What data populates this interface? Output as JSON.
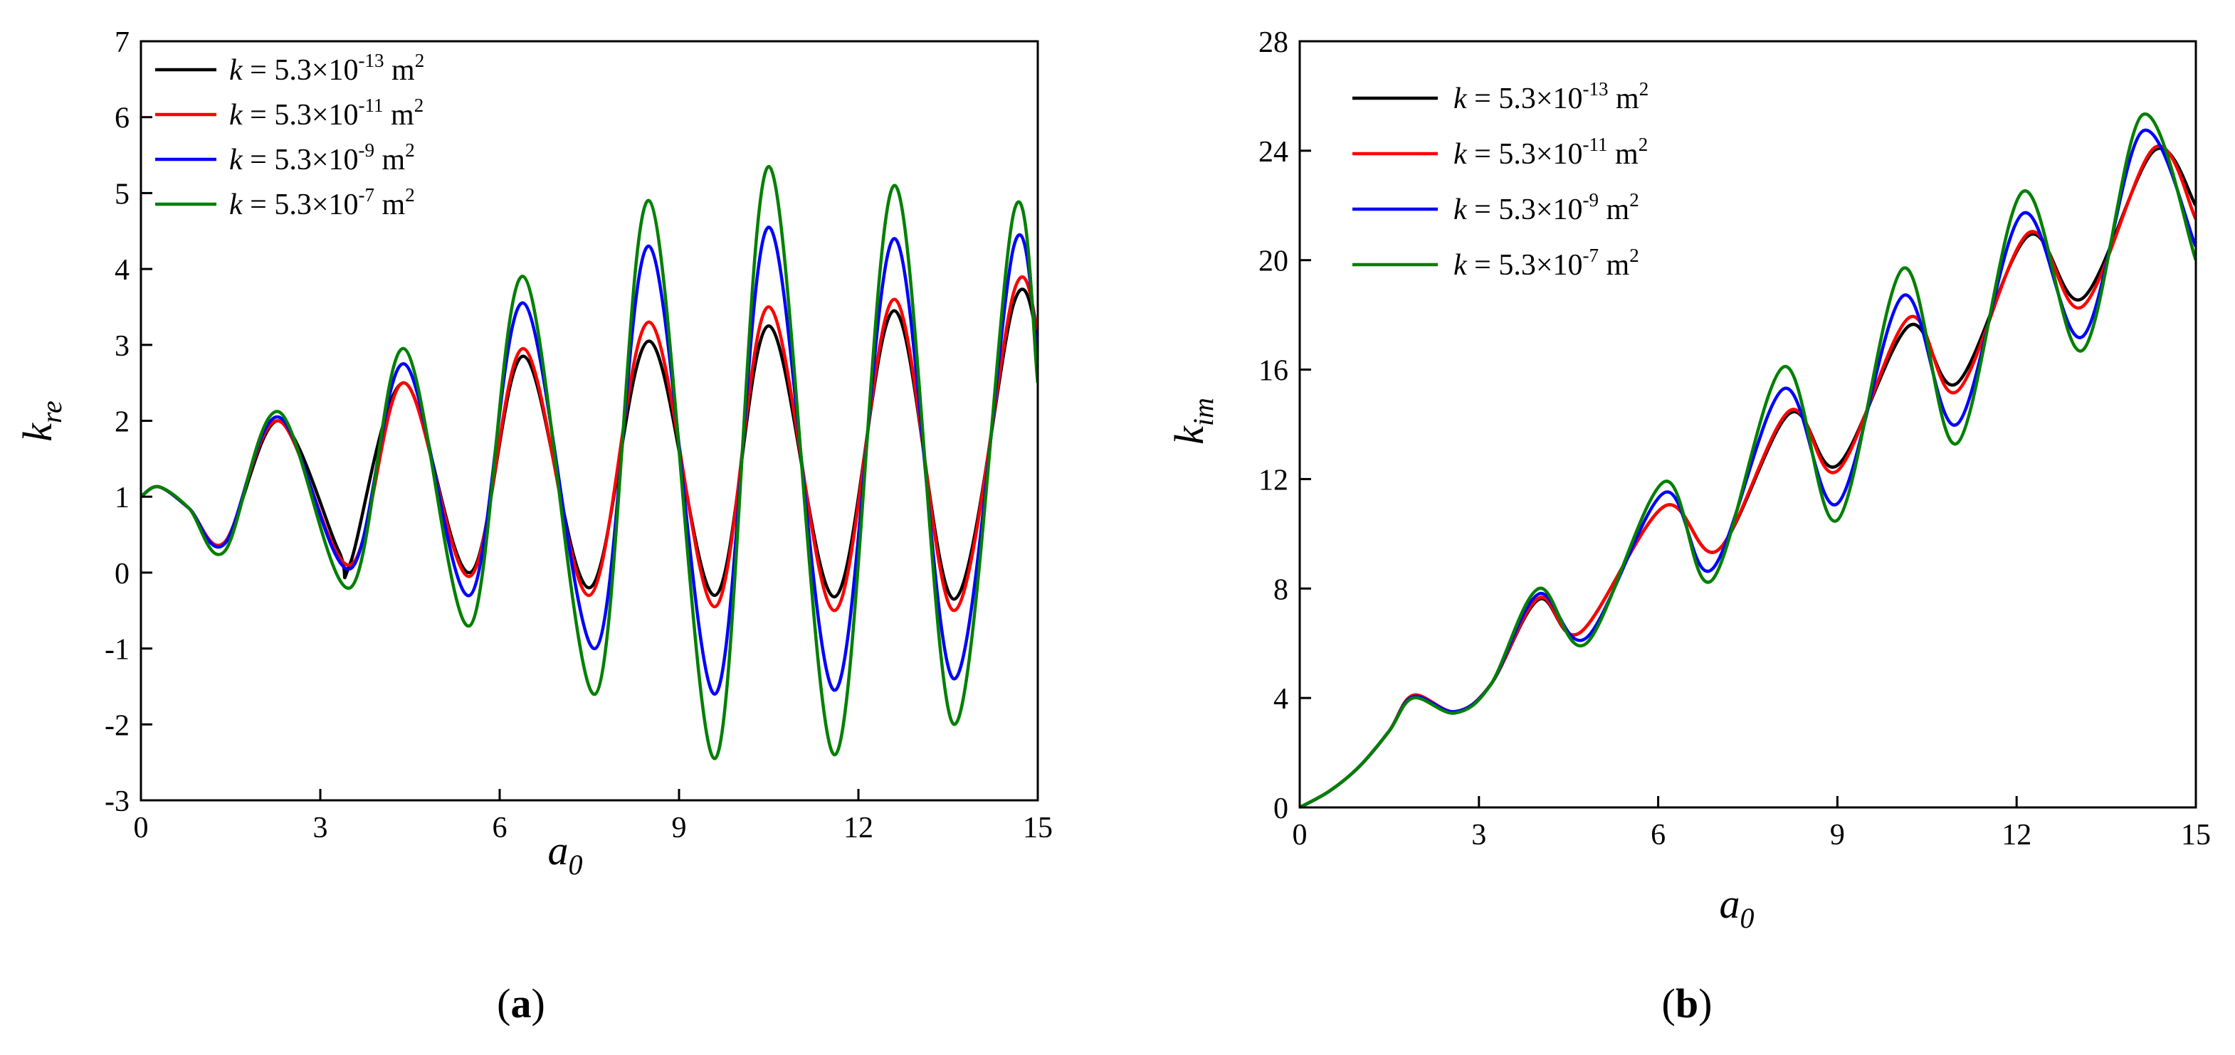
{
  "panels": [
    {
      "label": "a",
      "open": "(",
      "close": ")"
    },
    {
      "label": "b",
      "open": "(",
      "close": ")"
    }
  ],
  "chart_data": [
    {
      "type": "line",
      "xlabel": {
        "main": "a",
        "sub": "0"
      },
      "ylabel": {
        "main": "k",
        "sub": "re"
      },
      "xlim": [
        0,
        15
      ],
      "ylim": [
        -3,
        7
      ],
      "xticks": [
        "0",
        "3",
        "6",
        "9",
        "12",
        "15"
      ],
      "yticks": [
        "-3",
        "-2",
        "-1",
        "0",
        "1",
        "2",
        "3",
        "4",
        "5",
        "6",
        "7"
      ],
      "grid": false,
      "legend_position": "top-left",
      "series": [
        {
          "name": {
            "k": "k",
            "eq": " = 5.3×10",
            "exp": "-13",
            "unit": " m",
            "usup": "2"
          },
          "color": "#000000",
          "points": [
            [
              0,
              1.0
            ],
            [
              0.3,
              1.13
            ],
            [
              0.8,
              0.85
            ],
            [
              1.4,
              0.4
            ],
            [
              2.3,
              2.0
            ],
            [
              3.3,
              0.3
            ],
            [
              3.5,
              0.12
            ],
            [
              4.4,
              2.5
            ],
            [
              5.5,
              0.0
            ],
            [
              6.4,
              2.85
            ],
            [
              7.5,
              -0.2
            ],
            [
              8.5,
              3.05
            ],
            [
              9.6,
              -0.3
            ],
            [
              10.5,
              3.25
            ],
            [
              11.6,
              -0.32
            ],
            [
              12.6,
              3.45
            ],
            [
              13.6,
              -0.35
            ],
            [
              14.6,
              3.55
            ],
            [
              15,
              3.1
            ]
          ]
        },
        {
          "name": {
            "k": "k",
            "eq": " = 5.3×10",
            "exp": "-11",
            "unit": " m",
            "usup": "2"
          },
          "color": "#ff0000",
          "points": [
            [
              0,
              1.0
            ],
            [
              0.3,
              1.13
            ],
            [
              0.8,
              0.85
            ],
            [
              1.4,
              0.4
            ],
            [
              2.3,
              2.0
            ],
            [
              3.5,
              0.1
            ],
            [
              4.4,
              2.5
            ],
            [
              5.5,
              -0.05
            ],
            [
              6.4,
              2.95
            ],
            [
              7.5,
              -0.3
            ],
            [
              8.5,
              3.3
            ],
            [
              9.6,
              -0.45
            ],
            [
              10.5,
              3.5
            ],
            [
              11.6,
              -0.5
            ],
            [
              12.6,
              3.6
            ],
            [
              13.6,
              -0.5
            ],
            [
              14.6,
              3.7
            ],
            [
              15,
              3.2
            ]
          ]
        },
        {
          "name": {
            "k": "k",
            "eq": " = 5.3×10",
            "exp": "-9",
            "unit": " m",
            "usup": "2"
          },
          "color": "#0000ff",
          "points": [
            [
              0,
              1.0
            ],
            [
              0.3,
              1.13
            ],
            [
              0.8,
              0.85
            ],
            [
              1.4,
              0.38
            ],
            [
              2.3,
              2.05
            ],
            [
              3.5,
              0.05
            ],
            [
              4.4,
              2.75
            ],
            [
              5.5,
              -0.3
            ],
            [
              6.4,
              3.55
            ],
            [
              7.6,
              -1.0
            ],
            [
              8.5,
              4.3
            ],
            [
              9.6,
              -1.6
            ],
            [
              10.5,
              4.55
            ],
            [
              11.6,
              -1.55
            ],
            [
              12.6,
              4.4
            ],
            [
              13.6,
              -1.4
            ],
            [
              14.6,
              4.3
            ],
            [
              15,
              2.8
            ]
          ]
        },
        {
          "name": {
            "k": "k",
            "eq": " = 5.3×10",
            "exp": "-7",
            "unit": " m",
            "usup": "2"
          },
          "color": "#008000",
          "points": [
            [
              0,
              1.0
            ],
            [
              0.3,
              1.13
            ],
            [
              0.8,
              0.85
            ],
            [
              1.4,
              0.28
            ],
            [
              2.3,
              2.12
            ],
            [
              3.5,
              -0.2
            ],
            [
              4.4,
              2.95
            ],
            [
              5.5,
              -0.7
            ],
            [
              6.4,
              3.9
            ],
            [
              7.6,
              -1.6
            ],
            [
              8.5,
              4.9
            ],
            [
              9.6,
              -2.45
            ],
            [
              10.5,
              5.35
            ],
            [
              11.6,
              -2.4
            ],
            [
              12.6,
              5.1
            ],
            [
              13.6,
              -2.0
            ],
            [
              14.6,
              4.75
            ],
            [
              15,
              2.5
            ]
          ]
        }
      ]
    },
    {
      "type": "line",
      "xlabel": {
        "main": "a",
        "sub": "0"
      },
      "ylabel": {
        "main": "k",
        "sub": "im"
      },
      "xlim": [
        0,
        15
      ],
      "ylim": [
        0,
        28
      ],
      "xticks": [
        "0",
        "3",
        "6",
        "9",
        "12",
        "15"
      ],
      "yticks": [
        "0",
        "4",
        "8",
        "12",
        "16",
        "20",
        "24",
        "28"
      ],
      "grid": false,
      "legend_position": "top-left",
      "series": [
        {
          "name": {
            "k": "k",
            "eq": " = 5.3×10",
            "exp": "-13",
            "unit": " m",
            "usup": "2"
          },
          "color": "#000000",
          "points": [
            [
              0,
              0
            ],
            [
              0.5,
              0.6
            ],
            [
              1.0,
              1.5
            ],
            [
              1.5,
              2.8
            ],
            [
              1.9,
              4.1
            ],
            [
              2.6,
              3.5
            ],
            [
              3.2,
              4.5
            ],
            [
              4.0,
              7.6
            ],
            [
              4.7,
              6.4
            ],
            [
              6.1,
              11.0
            ],
            [
              7.0,
              9.4
            ],
            [
              8.2,
              14.4
            ],
            [
              9.0,
              12.5
            ],
            [
              10.2,
              17.6
            ],
            [
              11.0,
              15.5
            ],
            [
              12.2,
              20.9
            ],
            [
              13.1,
              18.6
            ],
            [
              14.3,
              24.0
            ],
            [
              15,
              22.0
            ]
          ]
        },
        {
          "name": {
            "k": "k",
            "eq": " = 5.3×10",
            "exp": "-11",
            "unit": " m",
            "usup": "2"
          },
          "color": "#ff0000",
          "points": [
            [
              0,
              0
            ],
            [
              0.5,
              0.6
            ],
            [
              1.0,
              1.5
            ],
            [
              1.5,
              2.8
            ],
            [
              1.9,
              4.1
            ],
            [
              2.6,
              3.5
            ],
            [
              3.2,
              4.5
            ],
            [
              4.0,
              7.65
            ],
            [
              4.7,
              6.4
            ],
            [
              6.1,
              11.0
            ],
            [
              7.0,
              9.4
            ],
            [
              8.2,
              14.5
            ],
            [
              9.0,
              12.3
            ],
            [
              10.2,
              17.9
            ],
            [
              11.0,
              15.2
            ],
            [
              12.2,
              21.0
            ],
            [
              13.1,
              18.3
            ],
            [
              14.3,
              24.1
            ],
            [
              15,
              21.5
            ]
          ]
        },
        {
          "name": {
            "k": "k",
            "eq": " = 5.3×10",
            "exp": "-9",
            "unit": " m",
            "usup": "2"
          },
          "color": "#0000ff",
          "points": [
            [
              0,
              0
            ],
            [
              0.5,
              0.6
            ],
            [
              1.0,
              1.5
            ],
            [
              1.5,
              2.8
            ],
            [
              1.9,
              4.05
            ],
            [
              2.6,
              3.5
            ],
            [
              3.2,
              4.5
            ],
            [
              4.0,
              7.8
            ],
            [
              4.8,
              6.2
            ],
            [
              6.1,
              11.5
            ],
            [
              6.9,
              8.7
            ],
            [
              8.1,
              15.3
            ],
            [
              9.0,
              11.1
            ],
            [
              10.1,
              18.7
            ],
            [
              11.0,
              14.0
            ],
            [
              12.1,
              21.7
            ],
            [
              13.1,
              17.2
            ],
            [
              14.1,
              24.7
            ],
            [
              15,
              20.5
            ]
          ]
        },
        {
          "name": {
            "k": "k",
            "eq": " = 5.3×10",
            "exp": "-7",
            "unit": " m",
            "usup": "2"
          },
          "color": "#008000",
          "points": [
            [
              0,
              0
            ],
            [
              0.5,
              0.6
            ],
            [
              1.0,
              1.5
            ],
            [
              1.5,
              2.8
            ],
            [
              1.9,
              4.0
            ],
            [
              2.6,
              3.45
            ],
            [
              3.2,
              4.5
            ],
            [
              4.0,
              8.0
            ],
            [
              4.8,
              6.0
            ],
            [
              6.1,
              11.9
            ],
            [
              6.9,
              8.3
            ],
            [
              8.1,
              16.1
            ],
            [
              9.0,
              10.5
            ],
            [
              10.1,
              19.7
            ],
            [
              11.0,
              13.3
            ],
            [
              12.1,
              22.5
            ],
            [
              13.1,
              16.7
            ],
            [
              14.1,
              25.3
            ],
            [
              15,
              20.0
            ]
          ]
        }
      ]
    }
  ]
}
